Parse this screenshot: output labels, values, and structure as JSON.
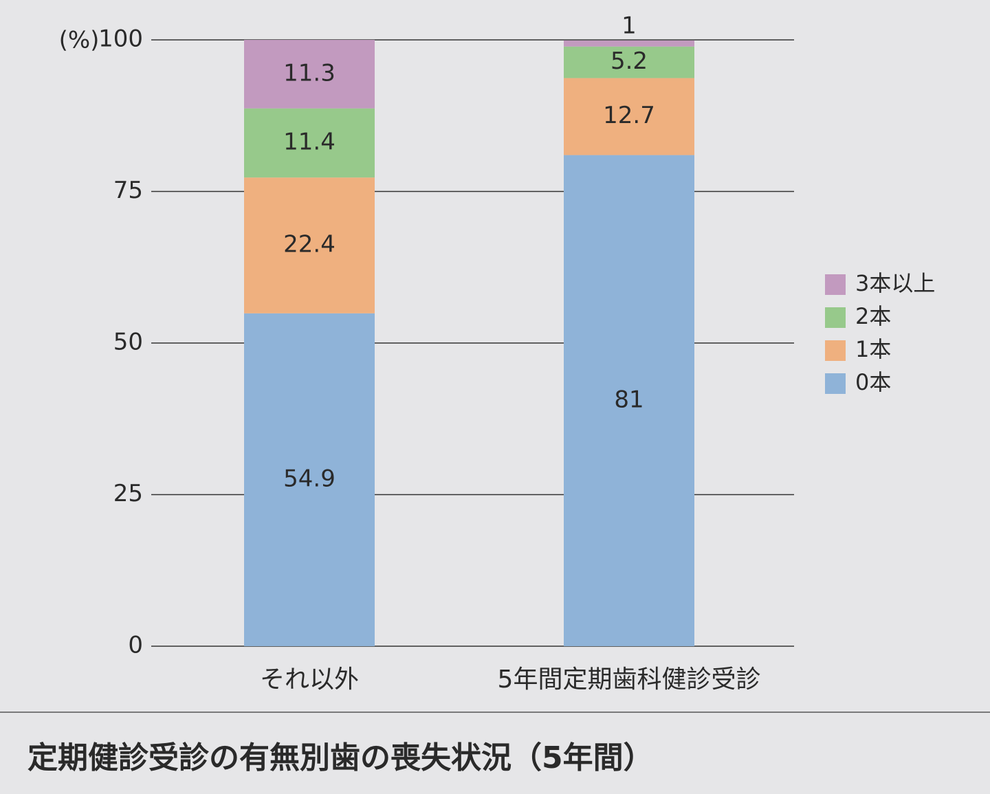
{
  "chart_data": {
    "type": "stacked_bar",
    "title": "定期健診受診の有無別歯の喪失状況（5年間）",
    "y_label": "(%)",
    "categories": [
      "それ以外",
      "5年間定期歯科健診受診"
    ],
    "series": [
      {
        "name": "0本",
        "color": "#8fb3d8",
        "values": [
          54.9,
          81
        ]
      },
      {
        "name": "1本",
        "color": "#efb07f",
        "values": [
          22.4,
          12.7
        ]
      },
      {
        "name": "2本",
        "color": "#97c98b",
        "values": [
          11.4,
          5.2
        ]
      },
      {
        "name": "3本以上",
        "color": "#c29abf",
        "values": [
          11.3,
          1
        ]
      }
    ],
    "ylim": [
      0,
      100
    ],
    "yticks": [
      0,
      25,
      50,
      75,
      100
    ],
    "grid": true,
    "legend": "right"
  }
}
